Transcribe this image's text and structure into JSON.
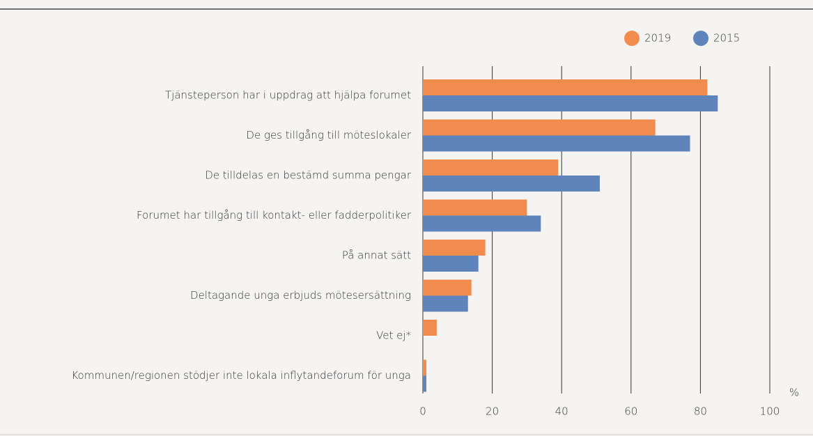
{
  "chart_data": {
    "type": "hbar",
    "categories": [
      "Tjänsteperson har i uppdrag att hjälpa forumet",
      "De ges tillgång till möteslokaler",
      "De tilldelas en bestämd summa pengar",
      "Forumet har tillgång till kontakt- eller fadderpolitiker",
      "På annat sätt",
      "Deltagande unga erbjuds mötesersättning",
      "Vet ej*",
      "Kommunen/regionen stödjer inte lokala inflytandeforum för unga"
    ],
    "series": [
      {
        "name": "2019",
        "color": "#f28c4e",
        "values": [
          82,
          67,
          39,
          30,
          18,
          14,
          4,
          1
        ]
      },
      {
        "name": "2015",
        "color": "#5f83bb",
        "values": [
          85,
          77,
          51,
          34,
          16,
          13,
          null,
          1
        ]
      }
    ],
    "xlabel": "%",
    "xlim": [
      0,
      100
    ],
    "xticks": [
      0,
      20,
      40,
      60,
      80,
      100
    ],
    "grid": true,
    "legend": "top-right"
  }
}
